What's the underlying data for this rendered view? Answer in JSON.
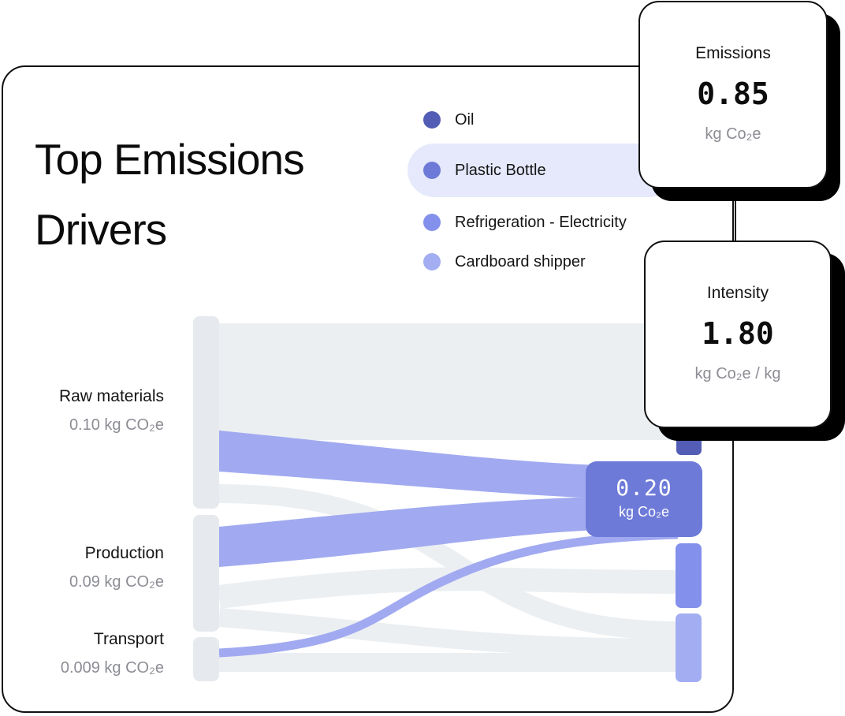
{
  "title": "Top Emissions Drivers",
  "legend": [
    {
      "label": "Oil",
      "color": "#535db5"
    },
    {
      "label": "Plastic Bottle",
      "color": "#6d7ad8",
      "highlighted": true
    },
    {
      "label": "Refrigeration - Electricity",
      "color": "#8390ec"
    },
    {
      "label": "Cardboard shipper",
      "color": "#a3adf1"
    }
  ],
  "sources": [
    {
      "name": "Raw materials",
      "value": "0.10 kg CO₂e"
    },
    {
      "name": "Production",
      "value": "0.09 kg CO₂e"
    },
    {
      "name": "Transport",
      "value": "0.009 kg CO₂e"
    }
  ],
  "highlight_badge": {
    "value": "0.20",
    "unit": "kg Co₂e"
  },
  "stats": {
    "emissions": {
      "label": "Emissions",
      "value": "0.85",
      "unit": "kg Co₂e"
    },
    "intensity": {
      "label": "Intensity",
      "value": "1.80",
      "unit": "kg Co₂e / kg"
    }
  },
  "colors": {
    "flow_muted": "#eceff2",
    "flow_highlight": "#a1aaf0",
    "node_muted": "#e6e9ed",
    "accent": "#6d7ad8"
  }
}
